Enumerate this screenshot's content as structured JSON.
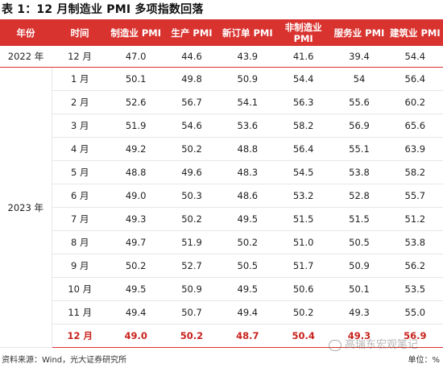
{
  "title": "表 1：12 月制造业 PMI 多项指数回落",
  "headers": [
    "年份",
    "时间",
    "制造业 PMI",
    "生产 PMI",
    "新订单 PMI",
    "非制造业\nPMI",
    "服务业 PMI",
    "建筑业 PMI"
  ],
  "row_2022": {
    "year": "2022 年",
    "cells": [
      "12 月",
      "47.0",
      "44.6",
      "43.9",
      "41.6",
      "39.4",
      "54.4"
    ]
  },
  "year_2023": "2023 年",
  "rows_2023": [
    [
      "1 月",
      "50.1",
      "49.8",
      "50.9",
      "54.4",
      "54",
      "56.4"
    ],
    [
      "2 月",
      "52.6",
      "56.7",
      "54.1",
      "56.3",
      "55.6",
      "60.2"
    ],
    [
      "3 月",
      "51.9",
      "54.6",
      "53.6",
      "58.2",
      "56.9",
      "65.6"
    ],
    [
      "4 月",
      "49.2",
      "50.2",
      "48.8",
      "56.4",
      "55.1",
      "63.9"
    ],
    [
      "5 月",
      "48.8",
      "49.6",
      "48.3",
      "54.5",
      "53.8",
      "58.2"
    ],
    [
      "6 月",
      "49.0",
      "50.3",
      "48.6",
      "53.2",
      "52.8",
      "55.7"
    ],
    [
      "7 月",
      "49.3",
      "50.2",
      "49.5",
      "51.5",
      "51.5",
      "51.2"
    ],
    [
      "8 月",
      "49.7",
      "51.9",
      "50.2",
      "51.0",
      "50.5",
      "53.8"
    ],
    [
      "9 月",
      "50.2",
      "52.7",
      "50.5",
      "51.7",
      "50.9",
      "56.2"
    ],
    [
      "10 月",
      "49.5",
      "50.9",
      "49.5",
      "50.6",
      "50.1",
      "53.5"
    ],
    [
      "11 月",
      "49.4",
      "50.7",
      "49.4",
      "50.2",
      "49.3",
      "55.0"
    ],
    [
      "12 月",
      "49.0",
      "50.2",
      "48.7",
      "50.4",
      "49.3",
      "56.9"
    ]
  ],
  "footer": {
    "source": "资料来源：Wind，光大证券研究所",
    "unit": "单位：%"
  },
  "watermark": "高瑞东宏观笔记",
  "colors": {
    "header_bg": "#d9332f",
    "highlight_text": "#c8221d"
  }
}
